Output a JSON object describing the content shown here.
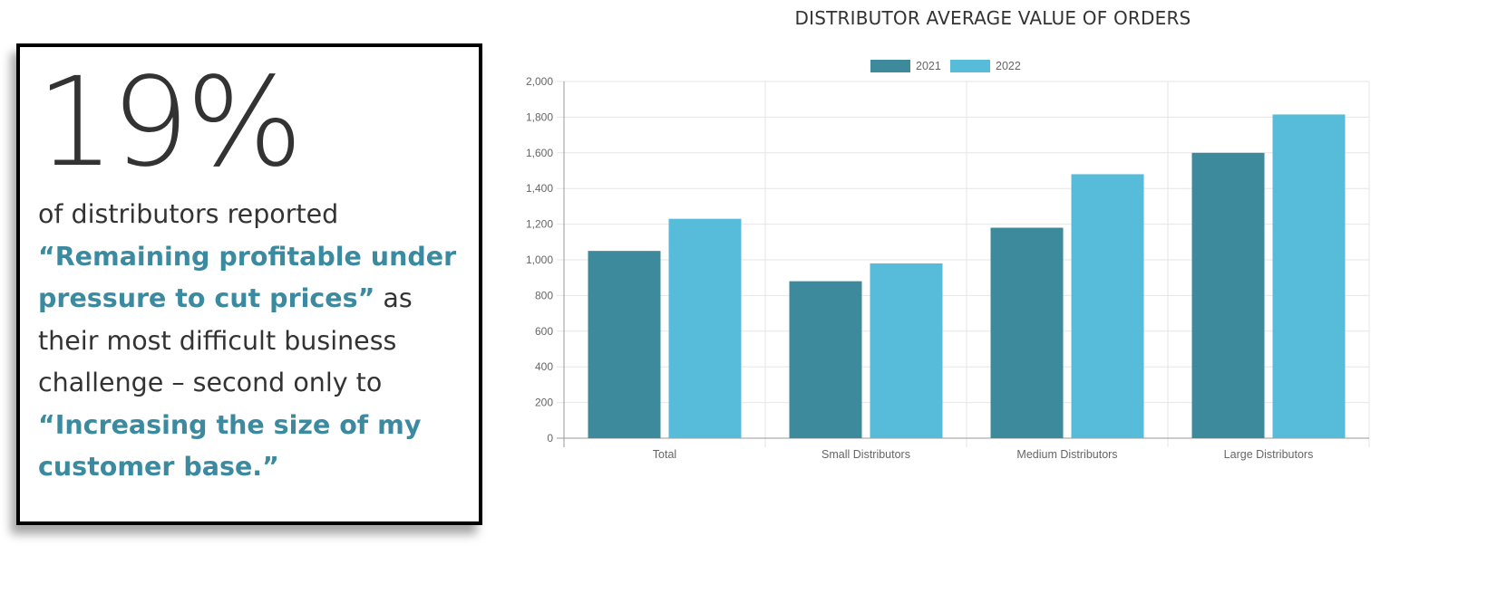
{
  "stat": {
    "value": "19%",
    "line1": "of distributors reported",
    "highlight1": "“Remaining profitable under pressure to cut prices”",
    "middle": " as their most difficult business challenge – second only to ",
    "highlight2": "“Increasing the size of my customer base.”"
  },
  "colors": {
    "series_2021": "#3c8a9c",
    "series_2022": "#57bcd9",
    "highlight_text": "#3c8aa0",
    "grid": "#e6e6e6",
    "axis": "#999999",
    "tick_text": "#666666"
  },
  "chart_data": {
    "type": "bar",
    "title": "DISTRIBUTOR AVERAGE VALUE OF ORDERS",
    "xlabel": "",
    "ylabel": "",
    "categories": [
      "Total",
      "Small Distributors",
      "Medium Distributors",
      "Large Distributors"
    ],
    "series": [
      {
        "name": "2021",
        "values": [
          1050,
          880,
          1180,
          1600
        ]
      },
      {
        "name": "2022",
        "values": [
          1230,
          980,
          1480,
          1815
        ]
      }
    ],
    "ylim": [
      0,
      2000
    ],
    "yticks": [
      0,
      200,
      400,
      600,
      800,
      1000,
      1200,
      1400,
      1600,
      1800,
      2000
    ],
    "ytick_labels": [
      "0",
      "200",
      "400",
      "600",
      "800",
      "1,000",
      "1,200",
      "1,400",
      "1,600",
      "1,800",
      "2,000"
    ],
    "grid": true,
    "legend": "top-center"
  }
}
